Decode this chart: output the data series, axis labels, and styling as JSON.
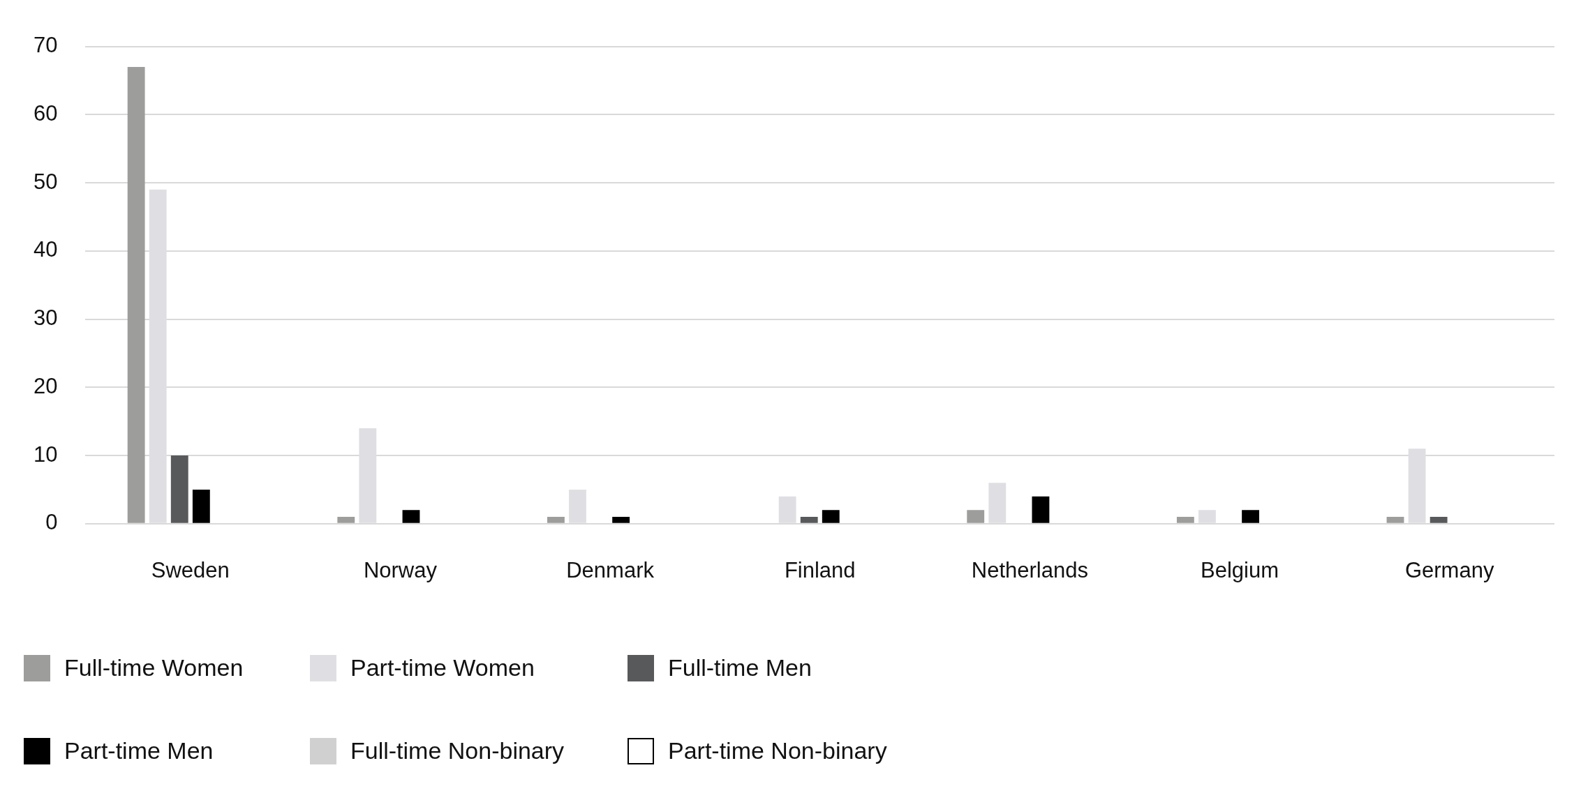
{
  "chart_data": {
    "type": "bar",
    "categories": [
      "Sweden",
      "Norway",
      "Denmark",
      "Finland",
      "Netherlands",
      "Belgium",
      "Germany"
    ],
    "series": [
      {
        "name": "Full-time Women",
        "color": "#9d9d9b",
        "values": [
          67,
          1,
          1,
          0,
          2,
          1,
          1
        ]
      },
      {
        "name": "Part-time Women",
        "color": "#dfdfe3",
        "values": [
          49,
          14,
          5,
          4,
          6,
          2,
          11
        ]
      },
      {
        "name": "Full-time Men",
        "color": "#58595b",
        "values": [
          10,
          0,
          0,
          1,
          0,
          0,
          1
        ]
      },
      {
        "name": "Part-time Men",
        "color": "#000000",
        "values": [
          5,
          2,
          1,
          2,
          4,
          2,
          null
        ]
      },
      {
        "name": "Full-time Non-binary",
        "color": "#d0d0d0",
        "values": [
          0,
          0,
          0,
          0,
          0,
          0,
          null
        ]
      },
      {
        "name": "Part-time Non-binary",
        "color": "#ffffff",
        "values": [
          0,
          0,
          0,
          0,
          0,
          0,
          null
        ]
      }
    ],
    "ylim": [
      0,
      70
    ],
    "yticks": [
      0,
      10,
      20,
      30,
      40,
      50,
      60,
      70
    ],
    "grid": "y",
    "legend": "bottom"
  }
}
